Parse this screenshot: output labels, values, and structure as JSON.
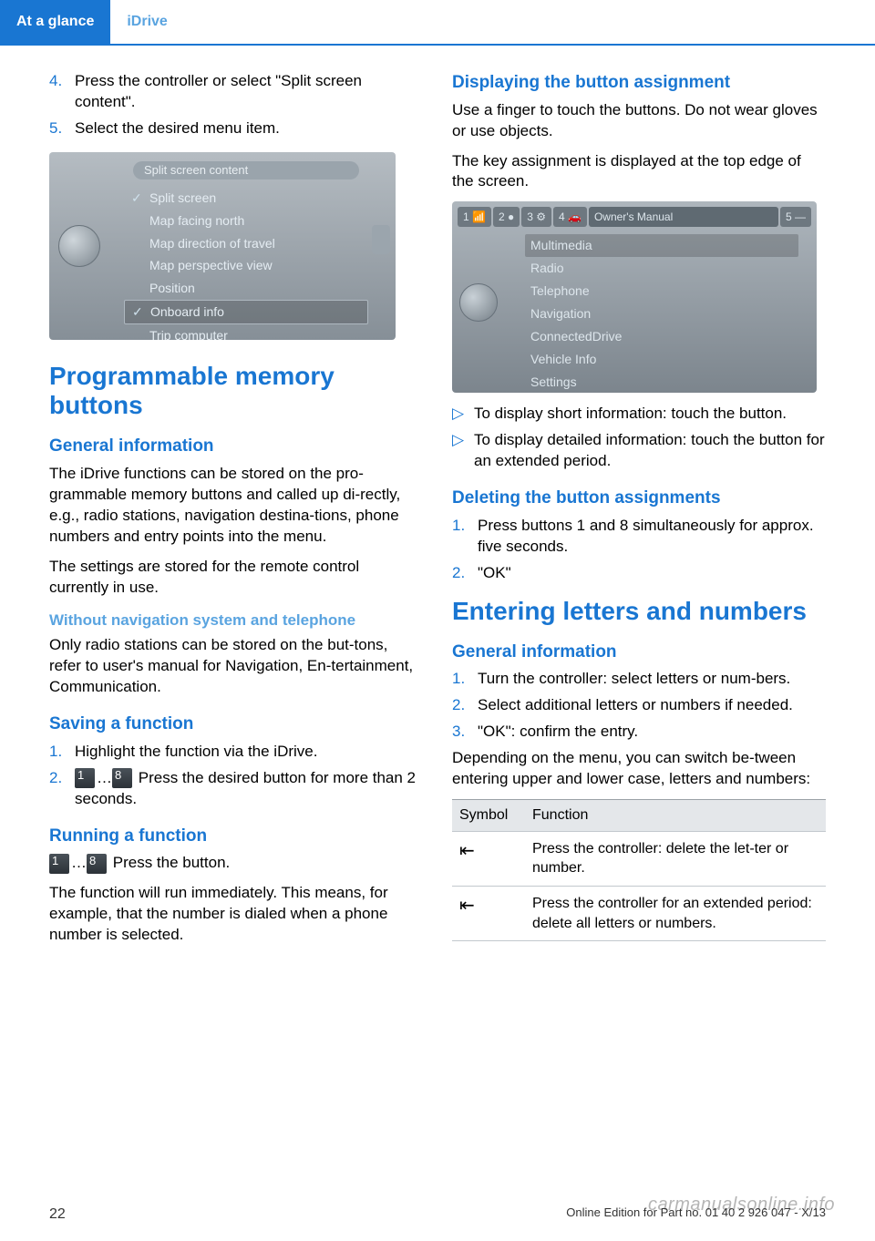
{
  "header": {
    "tab": "At a glance",
    "sub": "iDrive"
  },
  "left": {
    "steps_top": [
      {
        "n": "4.",
        "t": "Press the controller or select \"Split screen content\"."
      },
      {
        "n": "5.",
        "t": "Select the desired menu item."
      }
    ],
    "ss1": {
      "title": "Split screen content",
      "items": [
        {
          "t": "Split screen",
          "check": true
        },
        {
          "t": "Map facing north"
        },
        {
          "t": "Map direction of travel"
        },
        {
          "t": "Map perspective view"
        },
        {
          "t": "Position"
        },
        {
          "t": "Onboard info",
          "check": true,
          "sel": true
        },
        {
          "t": "Trip computer"
        }
      ]
    },
    "h1": "Programmable memory buttons",
    "gen_h": "General information",
    "gen_p1": "The iDrive functions can be stored on the pro‐grammable memory buttons and called up di‐rectly, e.g., radio stations, navigation destina‐tions, phone numbers and entry points into the menu.",
    "gen_p2": "The settings are stored for the remote control currently in use.",
    "wo_h": "Without navigation system and telephone",
    "wo_p": "Only radio stations can be stored on the but‐tons, refer to user's manual for Navigation, En‐tertainment, Communication.",
    "save_h": "Saving a function",
    "save_steps": [
      {
        "n": "1.",
        "t": "Highlight the function via the iDrive."
      },
      {
        "n": "2.",
        "t": "  Press the desired button for more than 2 seconds.",
        "btns": true
      }
    ],
    "run_h": "Running a function",
    "run_p1": "Press the button.",
    "run_p2": "The function will run immediately. This means, for example, that the number is dialed when a phone number is selected."
  },
  "right": {
    "disp_h": "Displaying the button assignment",
    "disp_p1": "Use a finger to touch the buttons. Do not wear gloves or use objects.",
    "disp_p2": "The key assignment is displayed at the top edge of the screen.",
    "ss2": {
      "tabs": [
        "1 📶",
        "2 ●",
        "3 ⚙",
        "4 🚗",
        "Owner's Manual",
        "5 —"
      ],
      "items": [
        "Multimedia",
        "Radio",
        "Telephone",
        "Navigation",
        "ConnectedDrive",
        "Vehicle Info",
        "Settings"
      ],
      "sel_index": 0
    },
    "disp_bullets": [
      "To display short information: touch the button.",
      "To display detailed information: touch the button for an extended period."
    ],
    "del_h": "Deleting the button assignments",
    "del_steps": [
      {
        "n": "1.",
        "t": "Press buttons 1 and 8 simultaneously for approx. five seconds."
      },
      {
        "n": "2.",
        "t": "\"OK\""
      }
    ],
    "ent_h": "Entering letters and numbers",
    "ent_gen_h": "General information",
    "ent_steps": [
      {
        "n": "1.",
        "t": "Turn the controller: select letters or num‐bers."
      },
      {
        "n": "2.",
        "t": "Select additional letters or numbers if needed."
      },
      {
        "n": "3.",
        "t": "\"OK\": confirm the entry."
      }
    ],
    "ent_p": "Depending on the menu, you can switch be‐tween entering upper and lower case, letters and numbers:",
    "table": {
      "h1": "Symbol",
      "h2": "Function",
      "rows": [
        {
          "sym": "⇤",
          "fn": "Press the controller: delete the let‐ter or number."
        },
        {
          "sym": "⇤",
          "fn": "Press the controller for an extended period: delete all letters or numbers."
        }
      ]
    }
  },
  "footer": {
    "page": "22",
    "edition": "Online Edition for Part no. 01 40 2 926 047 - X/13",
    "watermark": "carmanualsonline.info"
  }
}
